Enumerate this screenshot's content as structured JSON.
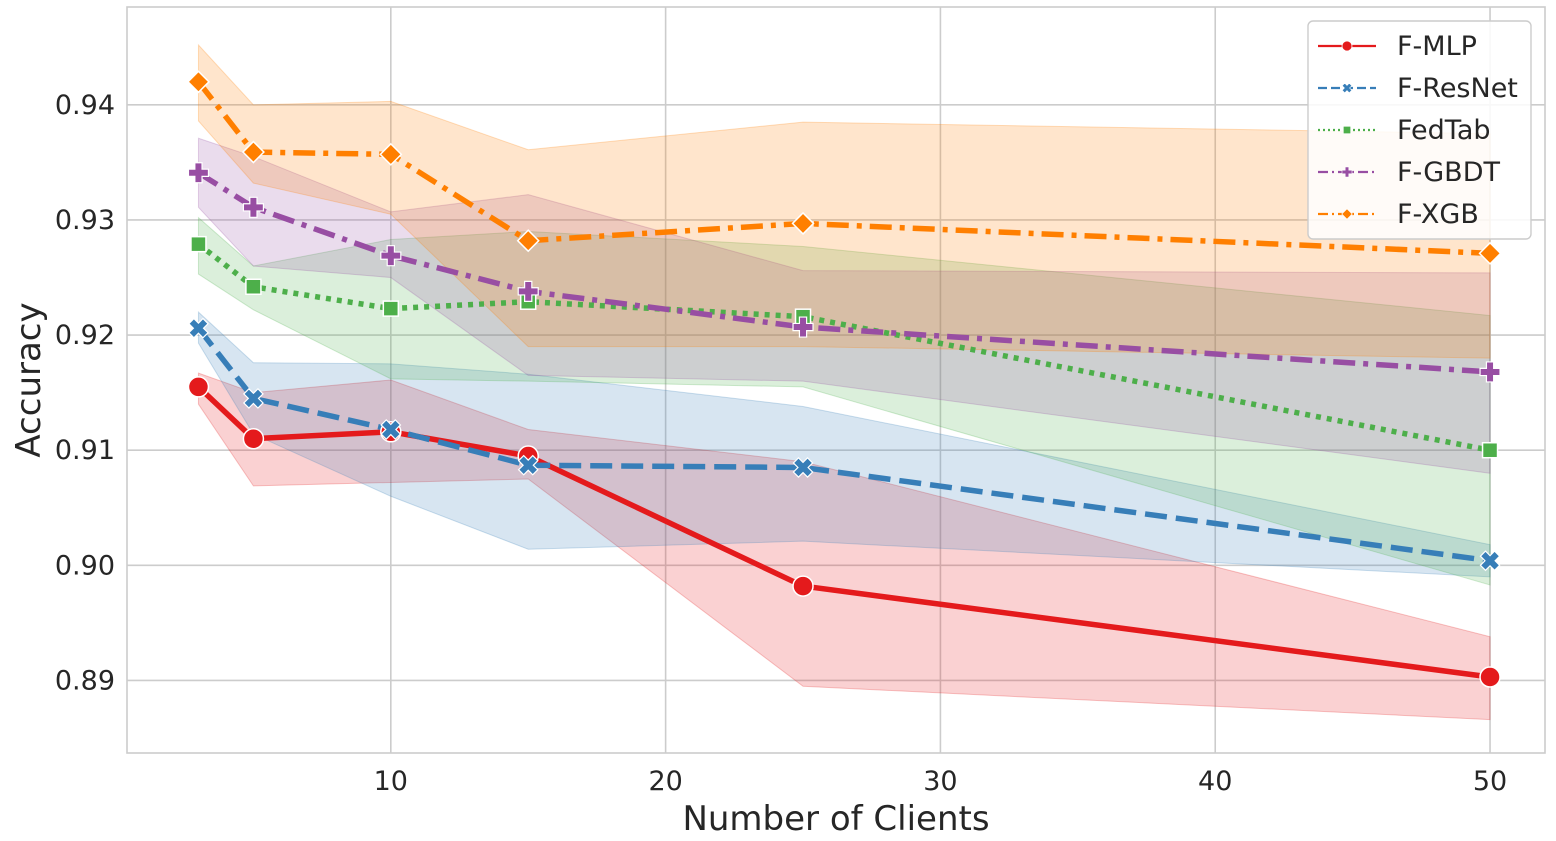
{
  "chart_data": {
    "type": "line",
    "title": "",
    "xlabel": "Number of Clients",
    "ylabel": "Accuracy",
    "xlim": [
      0.4,
      52
    ],
    "ylim": [
      0.8837,
      0.9485
    ],
    "x_ticks": [
      10,
      20,
      30,
      40,
      50
    ],
    "x_tick_labels": [
      "10",
      "20",
      "30",
      "40",
      "50"
    ],
    "y_ticks": [
      0.89,
      0.9,
      0.91,
      0.92,
      0.93,
      0.94
    ],
    "y_tick_labels": [
      "0.89",
      "0.90",
      "0.91",
      "0.92",
      "0.93",
      "0.94"
    ],
    "grid": true,
    "legend_position": "top-right",
    "x": [
      3,
      5,
      10,
      15,
      25,
      50
    ],
    "series": [
      {
        "name": "F-MLP",
        "color": "#e41a1c",
        "dash": "solid",
        "marker": "circle",
        "values": [
          0.9155,
          0.911,
          0.9116,
          0.9095,
          0.8982,
          0.8903
        ],
        "lower": [
          0.914,
          0.9069,
          0.9072,
          0.9075,
          0.8895,
          0.8866
        ],
        "upper": [
          0.9167,
          0.915,
          0.9161,
          0.9118,
          0.909,
          0.8938
        ]
      },
      {
        "name": "F-ResNet",
        "color": "#377eb8",
        "dash": "dashed",
        "marker": "x",
        "values": [
          0.9206,
          0.9145,
          0.9118,
          0.9087,
          0.9085,
          0.9004
        ],
        "lower": [
          0.9193,
          0.9114,
          0.906,
          0.9014,
          0.9021,
          0.899
        ],
        "upper": [
          0.922,
          0.9176,
          0.9175,
          0.9166,
          0.9138,
          0.9018
        ]
      },
      {
        "name": "FedTab",
        "color": "#4daf4a",
        "dash": "dotted",
        "marker": "square",
        "values": [
          0.9279,
          0.9242,
          0.9223,
          0.9229,
          0.9216,
          0.91
        ],
        "lower": [
          0.9253,
          0.9222,
          0.9162,
          0.916,
          0.9155,
          0.8983
        ],
        "upper": [
          0.9302,
          0.926,
          0.9283,
          0.929,
          0.9277,
          0.9217
        ]
      },
      {
        "name": "F-GBDT",
        "color": "#984ea3",
        "dash": "dashdot",
        "marker": "plus",
        "values": [
          0.9341,
          0.9311,
          0.9269,
          0.9238,
          0.9207,
          0.9168
        ],
        "lower": [
          0.9311,
          0.926,
          0.925,
          0.9165,
          0.916,
          0.908
        ],
        "upper": [
          0.9371,
          0.9355,
          0.9307,
          0.9322,
          0.9256,
          0.9254
        ]
      },
      {
        "name": "F-XGB",
        "color": "#ff7f00",
        "dash": "dashdot",
        "marker": "diamond",
        "values": [
          0.942,
          0.9359,
          0.9357,
          0.9282,
          0.9297,
          0.9271
        ],
        "lower": [
          0.9386,
          0.9332,
          0.9305,
          0.919,
          0.919,
          0.918
        ],
        "upper": [
          0.9452,
          0.94,
          0.9403,
          0.9361,
          0.9385,
          0.9375
        ]
      }
    ]
  }
}
